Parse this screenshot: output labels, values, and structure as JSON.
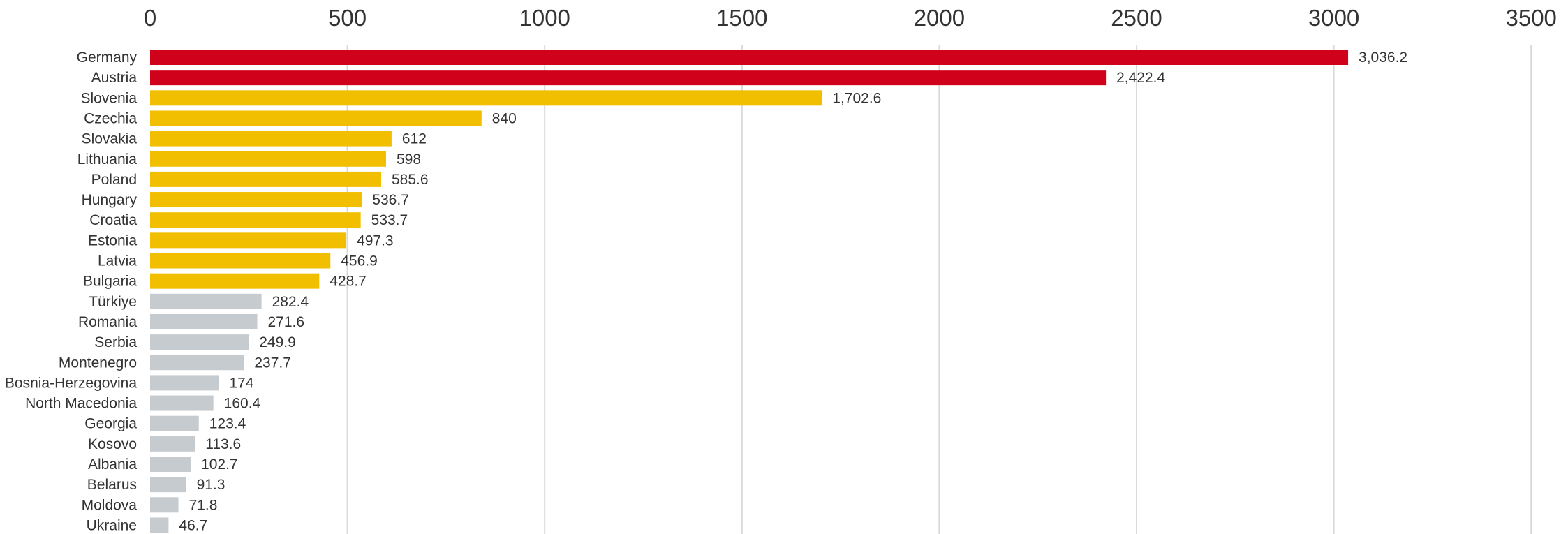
{
  "chart_data": {
    "type": "bar",
    "orientation": "horizontal",
    "title": "",
    "xlabel": "",
    "ylabel": "",
    "xlim": [
      0,
      3500
    ],
    "x_ticks": [
      0,
      500,
      1000,
      1500,
      2000,
      2500,
      3000,
      3500
    ],
    "x_tick_labels": [
      "0",
      "500",
      "1000",
      "1500",
      "2000",
      "2500",
      "3000",
      "3500"
    ],
    "x_axis_position": "top",
    "grid": true,
    "legend": "none",
    "categories": [
      "Germany",
      "Austria",
      "Slovenia",
      "Czechia",
      "Slovakia",
      "Lithuania",
      "Poland",
      "Hungary",
      "Croatia",
      "Estonia",
      "Latvia",
      "Bulgaria",
      "Türkiye",
      "Romania",
      "Serbia",
      "Montenegro",
      "Bosnia-Herzegovina",
      "North Macedonia",
      "Georgia",
      "Kosovo",
      "Albania",
      "Belarus",
      "Moldova",
      "Ukraine"
    ],
    "values": [
      3036.2,
      2422.4,
      1702.6,
      840,
      612,
      598,
      585.6,
      536.7,
      533.7,
      497.3,
      456.9,
      428.7,
      282.4,
      271.6,
      249.9,
      237.7,
      174,
      160.4,
      123.4,
      113.6,
      102.7,
      91.3,
      71.8,
      46.7
    ],
    "value_labels": [
      "3,036.2",
      "2,422.4",
      "1,702.6",
      "840",
      "612",
      "598",
      "585.6",
      "536.7",
      "533.7",
      "497.3",
      "456.9",
      "428.7",
      "282.4",
      "271.6",
      "249.9",
      "237.7",
      "174",
      "160.4",
      "123.4",
      "113.6",
      "102.7",
      "91.3",
      "71.8",
      "46.7"
    ],
    "bar_colors": [
      "#d0021b",
      "#d0021b",
      "#f2be00",
      "#f2be00",
      "#f2be00",
      "#f2be00",
      "#f2be00",
      "#f2be00",
      "#f2be00",
      "#f2be00",
      "#f2be00",
      "#f2be00",
      "#c6cbcf",
      "#c6cbcf",
      "#c6cbcf",
      "#c6cbcf",
      "#c6cbcf",
      "#c6cbcf",
      "#c6cbcf",
      "#c6cbcf",
      "#c6cbcf",
      "#c6cbcf",
      "#c6cbcf",
      "#c6cbcf"
    ],
    "colors": {
      "highest": "#d0021b",
      "middle": "#f2be00",
      "lowest": "#c6cbcf",
      "grid": "#d9d9d9",
      "text": "#333333"
    }
  }
}
